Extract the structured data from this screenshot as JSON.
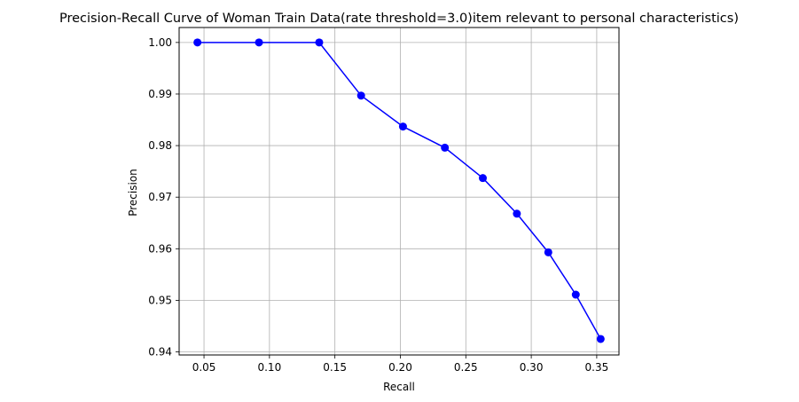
{
  "chart_data": {
    "type": "line",
    "title": "Precision-Recall Curve of Woman Train Data(rate threshold=3.0)item relevant to personal characteristics)",
    "xlabel": "Recall",
    "ylabel": "Precision",
    "xlim": [
      0.031,
      0.367
    ],
    "ylim": [
      0.9394,
      1.0029
    ],
    "grid": true,
    "x_ticks": [
      0.05,
      0.1,
      0.15,
      0.2,
      0.25,
      0.3,
      0.35
    ],
    "x_tick_labels": [
      "0.05",
      "0.10",
      "0.15",
      "0.20",
      "0.25",
      "0.30",
      "0.35"
    ],
    "y_ticks": [
      0.94,
      0.95,
      0.96,
      0.97,
      0.98,
      0.99,
      1.0
    ],
    "y_tick_labels": [
      "0.94",
      "0.95",
      "0.96",
      "0.97",
      "0.98",
      "0.99",
      "1.00"
    ],
    "series": [
      {
        "color": "#0000ff",
        "marker": "circle",
        "x": [
          0.045,
          0.092,
          0.138,
          0.17,
          0.202,
          0.234,
          0.263,
          0.289,
          0.313,
          0.334,
          0.353
        ],
        "y": [
          1.0,
          1.0,
          1.0,
          0.9897,
          0.9837,
          0.9796,
          0.9737,
          0.9668,
          0.9593,
          0.9511,
          0.9425
        ]
      }
    ]
  }
}
